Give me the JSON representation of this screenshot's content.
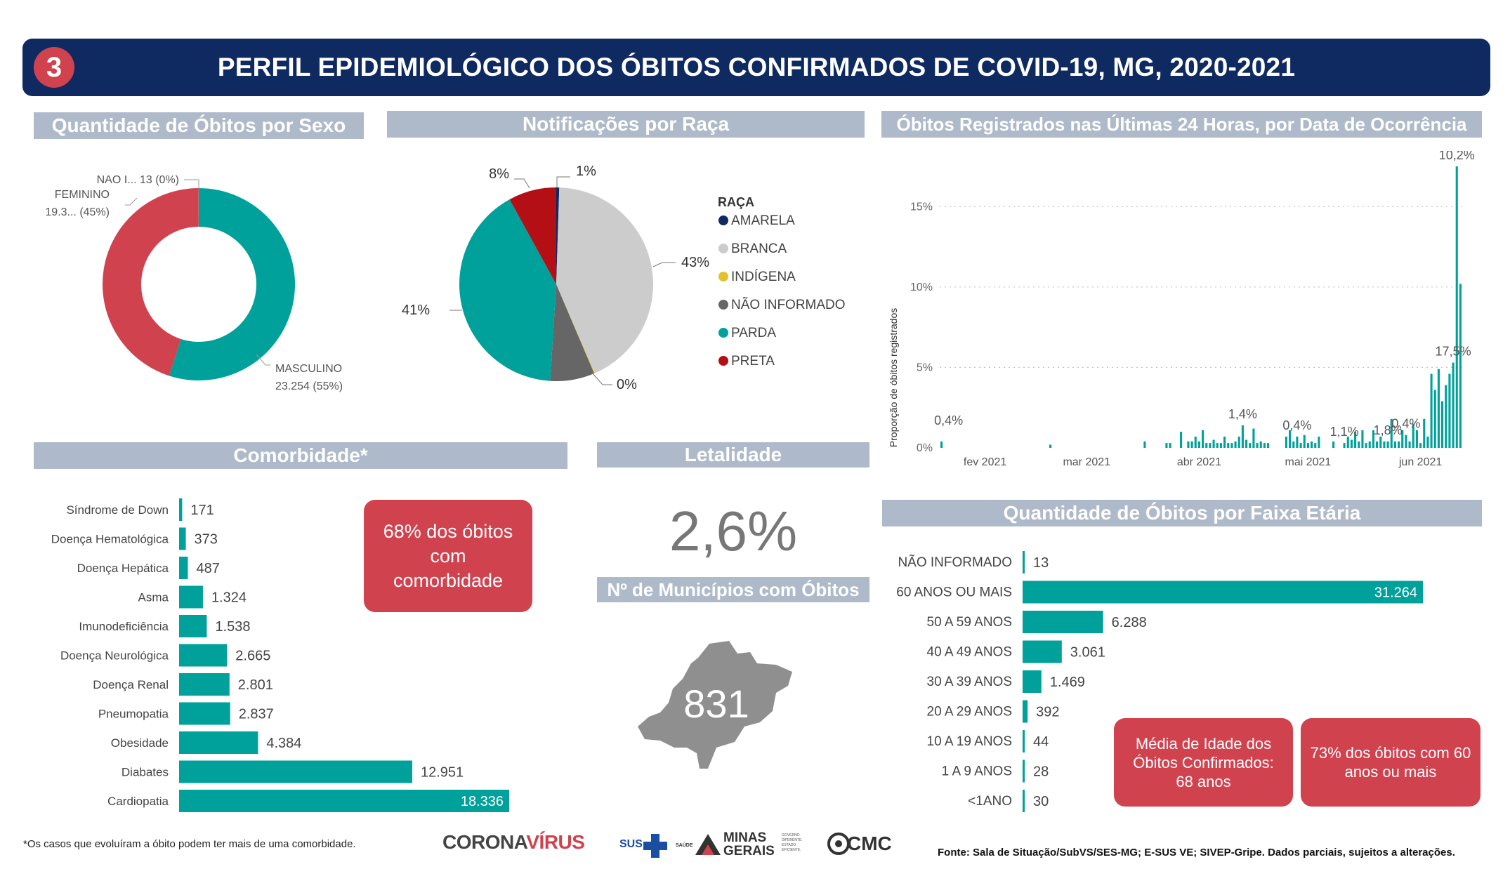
{
  "header": {
    "number": "3",
    "title": "PERFIL EPIDEMIOLÓGICO DOS ÓBITOS CONFIRMADOS DE COVID-19, MG, 2020-2021"
  },
  "sections": {
    "sexo": "Quantidade de Óbitos por Sexo",
    "raca": "Notificações por Raça",
    "ultimas24": "Óbitos Registrados nas Últimas 24 Horas, por Data de Ocorrência",
    "comorbidade": "Comorbidade*",
    "letalidade": "Letalidade",
    "municipios": "Nº de Municípios com Óbitos",
    "faixa": "Quantidade de Óbitos por Faixa Etária"
  },
  "letalidade_value": "2,6%",
  "municipios_value": "831",
  "comorbidade_box": "68% dos óbitos com comorbidade",
  "media_idade_box": "Média de Idade dos Óbitos Confirmados: 68 anos",
  "acima60_box": "73% dos óbitos com 60 anos ou mais",
  "footnote": "*Os casos que evoluíram a óbito podem ter mais de uma comorbidade.",
  "source": "Fonte: Sala de Situação/SubVS/SES-MG; E-SUS VE; SIVEP-Gripe. Dados parciais, sujeitos a alterações.",
  "logos": {
    "corona_a": "CORONA",
    "corona_b": "VÍRUS",
    "sus": "SUS",
    "saude": "SAÚDE",
    "minas": "MINAS",
    "gerais": "GERAIS",
    "governo": "GOVERNO DIFERENTE. ESTADO EFICIENTE.",
    "cmc": "CMC"
  },
  "colors": {
    "teal": "#00a19a",
    "red": "#d1424f",
    "navy": "#0e2a61",
    "section": "#aeb9c9"
  },
  "chart_data": [
    {
      "type": "pie",
      "variant": "donut",
      "title": "Quantidade de Óbitos por Sexo",
      "slices": [
        {
          "name": "MASCULINO",
          "label": "MASCULINO",
          "value_label": "23.254 (55%)",
          "value": 55,
          "color": "#00a19a"
        },
        {
          "name": "FEMININO",
          "label": "FEMININO",
          "value_label": "19.3... (45%)",
          "value": 45,
          "color": "#d1424f"
        },
        {
          "name": "NAO I...",
          "label": "NAO I... 13 (0%)",
          "value_label": "",
          "value": 0.03,
          "color": "#888888"
        }
      ]
    },
    {
      "type": "pie",
      "title": "Notificações por Raça",
      "legend_title": "RAÇA",
      "legend_position": "right",
      "slices": [
        {
          "name": "AMARELA",
          "value": 0.5,
          "label": "1%",
          "color": "#0e2a61"
        },
        {
          "name": "BRANCA",
          "value": 43,
          "label": "43%",
          "color": "#cccccc"
        },
        {
          "name": "INDÍGENA",
          "value": 0.1,
          "label": "0%",
          "color": "#e3c227"
        },
        {
          "name": "NÃO INFORMADO",
          "value": 7.4,
          "label": "",
          "color": "#666666"
        },
        {
          "name": "PARDA",
          "value": 41,
          "label": "41%",
          "color": "#00a19a"
        },
        {
          "name": "PRETA",
          "value": 8,
          "label": "8%",
          "color": "#b40f14"
        }
      ]
    },
    {
      "type": "bar",
      "title": "Óbitos Registrados nas Últimas 24 Horas, por Data de Ocorrência",
      "ylabel": "Proporção de óbitos registrados",
      "ylim": [
        0,
        17.5
      ],
      "yticks": [
        {
          "v": 0,
          "t": "0%"
        },
        {
          "v": 5,
          "t": "5%"
        },
        {
          "v": 10,
          "t": "10%"
        },
        {
          "v": 15,
          "t": "15%"
        }
      ],
      "xtick_labels": [
        "fev 2021",
        "mar 2021",
        "abr 2021",
        "mai 2021",
        "jun 2021"
      ],
      "xtick_index": [
        12,
        40,
        71,
        101,
        132
      ],
      "values": [
        0.4,
        0,
        0,
        0,
        0,
        0,
        0,
        0,
        0,
        0,
        0,
        0,
        0,
        0,
        0,
        0,
        0,
        0,
        0,
        0,
        0,
        0,
        0,
        0,
        0,
        0,
        0,
        0,
        0,
        0,
        0.2,
        0,
        0,
        0,
        0,
        0,
        0,
        0,
        0,
        0,
        0,
        0,
        0,
        0,
        0,
        0,
        0,
        0,
        0,
        0,
        0,
        0,
        0,
        0,
        0,
        0,
        0.4,
        0,
        0,
        0,
        0,
        0,
        0.3,
        0.3,
        0,
        0,
        1,
        0,
        0.4,
        0.4,
        0.7,
        0.4,
        1.1,
        0.3,
        0.3,
        0.5,
        0.3,
        0.3,
        0.7,
        0.3,
        0.3,
        0.4,
        0.7,
        1.4,
        0.5,
        0.3,
        1.2,
        0.3,
        0.4,
        0.3,
        0.3,
        0,
        0,
        0,
        0,
        0.7,
        1.1,
        0.4,
        0.7,
        0.3,
        0.8,
        0.3,
        0.4,
        0.3,
        0.7,
        0,
        0,
        0,
        0.4,
        0,
        0,
        0.3,
        0.7,
        0.5,
        1,
        0.4,
        1.1,
        0.3,
        0.4,
        1.1,
        0.4,
        0.7,
        0.4,
        0.4,
        1.8,
        0.4,
        0.4,
        1.1,
        0.8,
        0.4,
        1.5,
        1.1,
        0.3,
        1.8,
        0.7,
        4.6,
        3.6,
        4.9,
        2.9,
        3.9,
        4.6,
        5.3,
        17.5,
        10.2
      ],
      "data_labels": [
        {
          "i": 0,
          "t": "0,4%"
        },
        {
          "i": 83,
          "t": "1,4%"
        },
        {
          "i": 98,
          "t": "0,4%"
        },
        {
          "i": 111,
          "t": "1,1%"
        },
        {
          "i": 123,
          "t": "1,8%"
        },
        {
          "i": 128,
          "t": "0,4%"
        },
        {
          "i": 141,
          "t": "17,5%"
        },
        {
          "i": 142,
          "t": "10,2%"
        }
      ],
      "grid": true
    },
    {
      "type": "bar",
      "orientation": "horizontal",
      "title": "Comorbidade*",
      "categories": [
        "Síndrome de Down",
        "Doença Hematológica",
        "Doença Hepática",
        "Asma",
        "Imunodeficiência",
        "Doença Neurológica",
        "Doença Renal",
        "Pneumopatia",
        "Obesidade",
        "Diabates",
        "Cardiopatia"
      ],
      "values": [
        171,
        373,
        487,
        1324,
        1538,
        2665,
        2801,
        2837,
        4384,
        12951,
        18336
      ],
      "value_labels": [
        "171",
        "373",
        "487",
        "1.324",
        "1.538",
        "2.665",
        "2.801",
        "2.837",
        "4.384",
        "12.951",
        "18.336"
      ]
    },
    {
      "type": "bar",
      "orientation": "horizontal",
      "title": "Quantidade de Óbitos por Faixa Etária",
      "categories": [
        "NÃO INFORMADO",
        "60 ANOS OU MAIS",
        "50 A 59 ANOS",
        "40 A 49 ANOS",
        "30 A 39 ANOS",
        "20 A 29 ANOS",
        "10 A 19 ANOS",
        "1 A 9 ANOS",
        "<1ANO"
      ],
      "values": [
        13,
        31264,
        6288,
        3061,
        1469,
        392,
        44,
        28,
        30
      ],
      "value_labels": [
        "13",
        "31.264",
        "6.288",
        "3.061",
        "1.469",
        "392",
        "44",
        "28",
        "30"
      ]
    }
  ]
}
